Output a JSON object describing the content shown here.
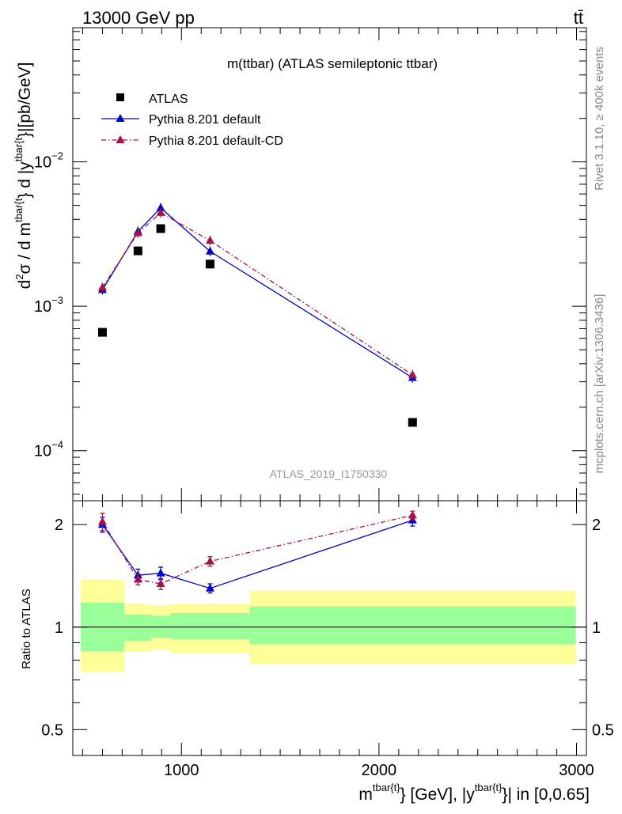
{
  "header": {
    "left": "13000 GeV pp",
    "right": "tt̄"
  },
  "side": {
    "top": "Rivet 3.1.10, ≥ 400k events",
    "bottom": "mcplots.cern.ch [arXiv:1306.3436]"
  },
  "chart_data": {
    "type": "scatter",
    "title": "m(ttbar) (ATLAS semileptonic ttbar)",
    "watermark": "ATLAS_2019_I1750330",
    "xlabel": {
      "main": "m",
      "sup1": "tbar{t}",
      "mid": "} [GeV], |y",
      "sup2": "tbar{t}",
      "tail": "}| in [0,0.65]"
    },
    "ylabel": {
      "d2": "d",
      "two": "2",
      "sigma_part": "σ / d m",
      "sup1": "tbar{t",
      "mid": "} d |y",
      "sup2": "tbar{t",
      "tail": "}|[pb/GeV]"
    },
    "ratio_ylabel": "Ratio to ATLAS",
    "xlim": [
      450,
      3050
    ],
    "x_ticks": [
      1000,
      2000,
      3000
    ],
    "x_tick_labels": [
      "1000",
      "2000",
      "3000"
    ],
    "main_ylim": [
      4.5e-05,
      0.085
    ],
    "main_yscale": "log",
    "main_y_ticks": [
      0.0001,
      0.001,
      0.01
    ],
    "main_y_tick_labels": [
      {
        "base": "10",
        "exp": "−4"
      },
      {
        "base": "10",
        "exp": "−3"
      },
      {
        "base": "10",
        "exp": "−2"
      }
    ],
    "ratio_ylim": [
      0.42,
      2.35
    ],
    "ratio_yscale": "log",
    "ratio_y_ticks": [
      0.5,
      1,
      2
    ],
    "ratio_y_tick_labels": [
      "0.5",
      "1",
      "2"
    ],
    "legend_placement": "top-left",
    "bins": [
      {
        "lo": 490,
        "hi": 710,
        "x": 600
      },
      {
        "lo": 710,
        "hi": 845,
        "x": 780
      },
      {
        "lo": 845,
        "hi": 945,
        "x": 895
      },
      {
        "lo": 945,
        "hi": 1345,
        "x": 1145
      },
      {
        "lo": 1345,
        "hi": 2995,
        "x": 2170
      }
    ],
    "bands": {
      "yellow_color": "#ffff99",
      "green_color": "#99ff99",
      "yellow": [
        [
          0.74,
          1.38
        ],
        [
          0.85,
          1.17
        ],
        [
          0.86,
          1.16
        ],
        [
          0.84,
          1.17
        ],
        [
          0.78,
          1.28
        ]
      ],
      "green": [
        [
          0.85,
          1.18
        ],
        [
          0.91,
          1.09
        ],
        [
          0.93,
          1.08
        ],
        [
          0.92,
          1.1
        ],
        [
          0.89,
          1.15
        ]
      ]
    },
    "series": [
      {
        "name": "ATLAS",
        "color": "#000000",
        "marker": "square",
        "values": [
          0.00066,
          0.00242,
          0.00345,
          0.00196,
          0.000157
        ]
      },
      {
        "name": "Pythia 8.201 default",
        "color": "#0000cc",
        "marker": "triangle",
        "line": "solid",
        "values": [
          0.0013,
          0.0033,
          0.0048,
          0.0024,
          0.00032
        ],
        "ratio": [
          2.0,
          1.42,
          1.44,
          1.3,
          2.06
        ],
        "ratio_err": [
          0.1,
          0.06,
          0.06,
          0.04,
          0.08
        ]
      },
      {
        "name": "Pythia 8.201 default-CD",
        "color": "#aa1144",
        "marker": "triangle",
        "line": "dashdot",
        "values": [
          0.00135,
          0.00322,
          0.00445,
          0.00285,
          0.000335
        ],
        "ratio": [
          2.04,
          1.38,
          1.34,
          1.56,
          2.13
        ],
        "ratio_err": [
          0.12,
          0.05,
          0.05,
          0.05,
          0.06
        ]
      }
    ]
  }
}
